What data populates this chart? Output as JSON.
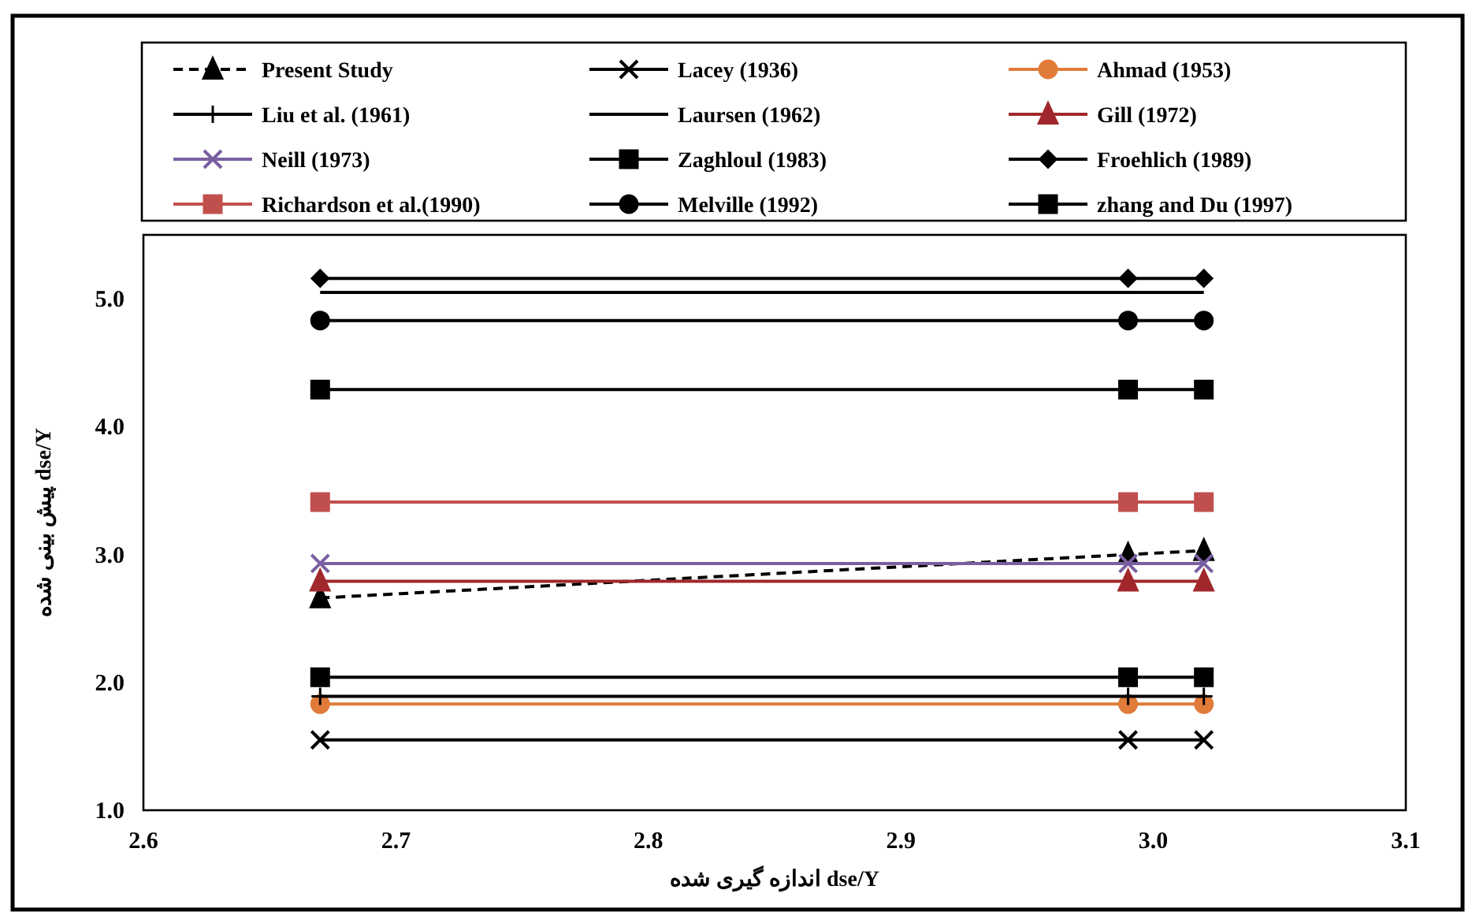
{
  "chart_data": {
    "type": "line",
    "xlabel": "dse/Y اندازه گیری شده",
    "ylabel": "dse/Y پیش بینی شده",
    "x": [
      2.67,
      2.99,
      3.02
    ],
    "xlim": [
      2.6,
      3.1
    ],
    "xticks": [
      {
        "value": 2.6,
        "label": "2.6"
      },
      {
        "value": 2.7,
        "label": "2.7"
      },
      {
        "value": 2.8,
        "label": "2.8"
      },
      {
        "value": 2.9,
        "label": "2.9"
      },
      {
        "value": 3.0,
        "label": "3.0"
      },
      {
        "value": 3.1,
        "label": "3.1"
      }
    ],
    "ylim": [
      1.0,
      5.5
    ],
    "yticks": [
      {
        "value": 1.0,
        "label": "1.0"
      },
      {
        "value": 2.0,
        "label": "2.0"
      },
      {
        "value": 3.0,
        "label": "3.0"
      },
      {
        "value": 4.0,
        "label": "4.0"
      },
      {
        "value": 5.0,
        "label": "5.0"
      }
    ],
    "grid": false,
    "legend": "top",
    "series": [
      {
        "name": "Present Study",
        "color": "#000000",
        "marker": "triangle",
        "line_style": "dashed",
        "values": [
          2.66,
          3.0,
          3.03
        ]
      },
      {
        "name": "Lacey (1936)",
        "color": "#000000",
        "marker": "cross",
        "line_style": "solid",
        "values": [
          1.55,
          1.55,
          1.55
        ]
      },
      {
        "name": "Ahmad (1953)",
        "color": "#e07b39",
        "marker": "circle",
        "line_style": "solid",
        "values": [
          1.83,
          1.83,
          1.83
        ]
      },
      {
        "name": "Liu et al. (1961)",
        "color": "#000000",
        "marker": "plus",
        "line_style": "solid",
        "values": [
          1.89,
          1.89,
          1.89
        ]
      },
      {
        "name": "Laursen (1962)",
        "color": "#000000",
        "marker": "none",
        "line_style": "solid",
        "values": [
          5.05,
          5.05,
          5.05
        ]
      },
      {
        "name": "Gill (1972)",
        "color": "#a0282c",
        "marker": "triangle",
        "line_style": "solid",
        "values": [
          2.79,
          2.79,
          2.79
        ]
      },
      {
        "name": "Neill (1973)",
        "color": "#7a5fa0",
        "marker": "cross",
        "line_style": "solid",
        "values": [
          2.93,
          2.93,
          2.93
        ]
      },
      {
        "name": "Zaghloul (1983)",
        "color": "#000000",
        "marker": "square",
        "line_style": "solid",
        "values": [
          2.04,
          2.04,
          2.04
        ]
      },
      {
        "name": "Froehlich (1989)",
        "color": "#000000",
        "marker": "diamond",
        "line_style": "solid",
        "values": [
          5.16,
          5.16,
          5.16
        ]
      },
      {
        "name": "Richardson et al.(1990)",
        "color": "#c0504d",
        "marker": "square",
        "line_style": "solid",
        "values": [
          3.41,
          3.41,
          3.41
        ]
      },
      {
        "name": "Melville (1992)",
        "color": "#000000",
        "marker": "circle",
        "line_style": "solid",
        "values": [
          4.83,
          4.83,
          4.83
        ]
      },
      {
        "name": "zhang and Du (1997)",
        "color": "#000000",
        "marker": "square",
        "line_style": "solid",
        "values": [
          4.29,
          4.29,
          4.29
        ]
      }
    ]
  }
}
